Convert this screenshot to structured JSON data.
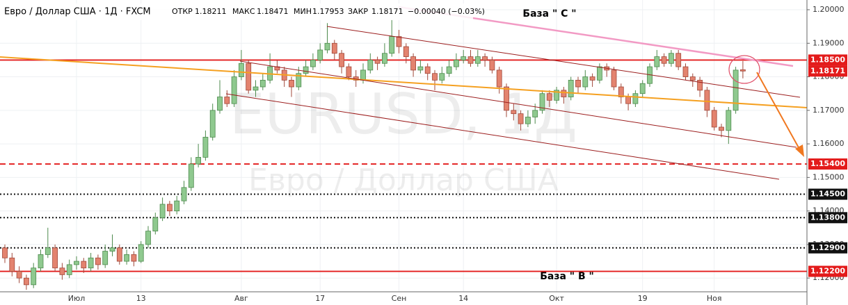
{
  "chart_data": {
    "type": "candlestick",
    "symbol": "Евро / Доллар США · 1Д · FXCM",
    "open_label": "ОТКР",
    "high_label": "МАКС",
    "low_label": "МИН",
    "close_label": "ЗАКР",
    "change": "−0.00040 (−0.03%)",
    "watermark": "EURUSD, 1Д",
    "watermark_sub": "Евро / Доллар США",
    "annotations": [
      "База \" С \"",
      "База \" В \""
    ],
    "up_color": "#8fc98f",
    "down_color": "#e3836f",
    "categories": [
      null,
      null,
      null,
      null,
      null,
      null,
      null,
      null,
      null,
      null,
      "Июл",
      null,
      null,
      null,
      null,
      null,
      null,
      null,
      null,
      "13",
      null,
      null,
      null,
      null,
      null,
      null,
      null,
      null,
      null,
      null,
      null,
      null,
      null,
      "Авг",
      null,
      null,
      null,
      null,
      null,
      null,
      null,
      null,
      null,
      null,
      "17",
      null,
      null,
      null,
      null,
      null,
      null,
      null,
      null,
      null,
      null,
      "Сен",
      null,
      null,
      null,
      null,
      null,
      null,
      null,
      null,
      "14",
      null,
      null,
      null,
      null,
      null,
      null,
      null,
      null,
      null,
      null,
      null,
      null,
      "Окт",
      null,
      null,
      null,
      null,
      null,
      null,
      null,
      null,
      null,
      null,
      null,
      "19",
      null,
      null,
      null,
      null,
      null,
      null,
      null,
      null,
      null,
      "Ноя",
      null,
      null,
      null,
      null
    ],
    "open": [
      1.129,
      1.126,
      1.122,
      1.12,
      1.118,
      1.123,
      1.127,
      1.129,
      1.123,
      1.121,
      1.124,
      1.125,
      1.123,
      1.126,
      1.124,
      1.128,
      1.129,
      1.125,
      1.127,
      1.125,
      1.13,
      1.134,
      1.138,
      1.142,
      1.14,
      1.143,
      1.147,
      1.154,
      1.156,
      1.162,
      1.17,
      1.174,
      1.172,
      1.18,
      1.184,
      1.176,
      1.177,
      1.179,
      1.183,
      1.182,
      1.179,
      1.177,
      1.181,
      1.183,
      1.185,
      1.188,
      1.19,
      1.187,
      1.183,
      1.18,
      1.179,
      1.182,
      1.185,
      1.184,
      1.187,
      1.192,
      1.189,
      1.186,
      1.182,
      1.183,
      1.181,
      1.179,
      1.181,
      1.183,
      1.185,
      1.186,
      1.184,
      1.186,
      1.185,
      1.182,
      1.177,
      1.17,
      1.169,
      1.166,
      1.168,
      1.17,
      1.175,
      1.173,
      1.176,
      1.174,
      1.179,
      1.177,
      1.18,
      1.179,
      1.183,
      1.182,
      1.177,
      1.174,
      1.172,
      1.175,
      1.178,
      1.183,
      1.186,
      1.184,
      1.187,
      1.183,
      1.18,
      1.179,
      1.176,
      1.17,
      1.165,
      1.164,
      1.17,
      1.18211
    ],
    "high": [
      1.13,
      1.1275,
      1.1235,
      1.121,
      1.1245,
      1.1285,
      1.135,
      1.13,
      1.1245,
      1.1255,
      1.1265,
      1.126,
      1.1275,
      1.127,
      1.13,
      1.133,
      1.13,
      1.1285,
      1.128,
      1.131,
      1.1355,
      1.1395,
      1.144,
      1.143,
      1.1445,
      1.149,
      1.156,
      1.16,
      1.164,
      1.172,
      1.179,
      1.176,
      1.182,
      1.188,
      1.185,
      1.179,
      1.181,
      1.187,
      1.185,
      1.183,
      1.18,
      1.183,
      1.185,
      1.187,
      1.19,
      1.196,
      1.191,
      1.188,
      1.184,
      1.182,
      1.184,
      1.187,
      1.186,
      1.19,
      1.197,
      1.194,
      1.19,
      1.187,
      1.185,
      1.184,
      1.182,
      1.183,
      1.185,
      1.187,
      1.188,
      1.188,
      1.188,
      1.187,
      1.186,
      1.183,
      1.178,
      1.172,
      1.17,
      1.17,
      1.172,
      1.176,
      1.176,
      1.177,
      1.177,
      1.18,
      1.18,
      1.182,
      1.181,
      1.184,
      1.184,
      1.183,
      1.178,
      1.175,
      1.176,
      1.179,
      1.184,
      1.188,
      1.187,
      1.188,
      1.188,
      1.184,
      1.181,
      1.18,
      1.177,
      1.171,
      1.166,
      1.171,
      1.183,
      1.18471
    ],
    "low": [
      1.1245,
      1.1205,
      1.1185,
      1.1165,
      1.117,
      1.122,
      1.126,
      1.122,
      1.1195,
      1.12,
      1.1225,
      1.1215,
      1.122,
      1.1225,
      1.123,
      1.1265,
      1.124,
      1.124,
      1.1235,
      1.1245,
      1.129,
      1.133,
      1.137,
      1.1385,
      1.139,
      1.142,
      1.146,
      1.153,
      1.155,
      1.161,
      1.169,
      1.171,
      1.171,
      1.179,
      1.175,
      1.174,
      1.176,
      1.178,
      1.181,
      1.177,
      1.174,
      1.176,
      1.18,
      1.182,
      1.184,
      1.187,
      1.185,
      1.181,
      1.179,
      1.177,
      1.178,
      1.181,
      1.182,
      1.183,
      1.186,
      1.187,
      1.184,
      1.18,
      1.181,
      1.179,
      1.176,
      1.178,
      1.18,
      1.182,
      1.184,
      1.183,
      1.183,
      1.183,
      1.181,
      1.175,
      1.168,
      1.167,
      1.164,
      1.165,
      1.166,
      1.169,
      1.171,
      1.172,
      1.172,
      1.173,
      1.175,
      1.176,
      1.177,
      1.178,
      1.18,
      1.176,
      1.172,
      1.17,
      1.171,
      1.174,
      1.177,
      1.182,
      1.183,
      1.183,
      1.182,
      1.179,
      1.177,
      1.174,
      1.168,
      1.164,
      1.162,
      1.16,
      1.169,
      1.17953
    ],
    "close": [
      1.126,
      1.122,
      1.12,
      1.118,
      1.123,
      1.127,
      1.129,
      1.123,
      1.121,
      1.124,
      1.125,
      1.123,
      1.126,
      1.124,
      1.128,
      1.129,
      1.125,
      1.127,
      1.125,
      1.13,
      1.134,
      1.138,
      1.142,
      1.14,
      1.143,
      1.147,
      1.154,
      1.156,
      1.162,
      1.17,
      1.174,
      1.172,
      1.18,
      1.184,
      1.176,
      1.177,
      1.179,
      1.183,
      1.182,
      1.179,
      1.177,
      1.181,
      1.183,
      1.185,
      1.188,
      1.19,
      1.187,
      1.183,
      1.18,
      1.179,
      1.182,
      1.185,
      1.184,
      1.187,
      1.192,
      1.189,
      1.186,
      1.182,
      1.183,
      1.181,
      1.179,
      1.181,
      1.183,
      1.185,
      1.186,
      1.184,
      1.186,
      1.185,
      1.182,
      1.177,
      1.17,
      1.169,
      1.166,
      1.168,
      1.17,
      1.175,
      1.173,
      1.176,
      1.174,
      1.179,
      1.177,
      1.18,
      1.179,
      1.183,
      1.182,
      1.177,
      1.174,
      1.172,
      1.175,
      1.178,
      1.183,
      1.186,
      1.184,
      1.187,
      1.183,
      1.18,
      1.179,
      1.176,
      1.17,
      1.165,
      1.164,
      1.17,
      1.182,
      1.18171
    ],
    "levels": [
      {
        "value": 1.185,
        "label": "1.18500",
        "style": "solid",
        "color": "#e31b1b"
      },
      {
        "value": 1.154,
        "label": "1.15400",
        "style": "dashed",
        "color": "#e31b1b"
      },
      {
        "value": 1.145,
        "label": "1.14500",
        "style": "dotted",
        "color": "#111111"
      },
      {
        "value": 1.138,
        "label": "1.13800",
        "style": "dotted",
        "color": "#111111"
      },
      {
        "value": 1.129,
        "label": "1.12900",
        "style": "dotted",
        "color": "#111111"
      },
      {
        "value": 1.122,
        "label": "1.12200",
        "style": "solid",
        "color": "#e31b1b"
      }
    ],
    "ylim": [
      1.1159,
      1.2029
    ],
    "yticks": [
      {
        "value": 1.12,
        "label": "1.12000"
      },
      {
        "value": 1.13,
        "label": "1.13000"
      },
      {
        "value": 1.14,
        "label": "1.14000"
      },
      {
        "value": 1.15,
        "label": "1.15000"
      },
      {
        "value": 1.16,
        "label": "1.16000"
      },
      {
        "value": 1.17,
        "label": "1.17000"
      },
      {
        "value": 1.18,
        "label": "1.18000"
      },
      {
        "value": 1.19,
        "label": "1.19000"
      },
      {
        "value": 1.2,
        "label": "1.20000"
      }
    ],
    "grid": true
  }
}
